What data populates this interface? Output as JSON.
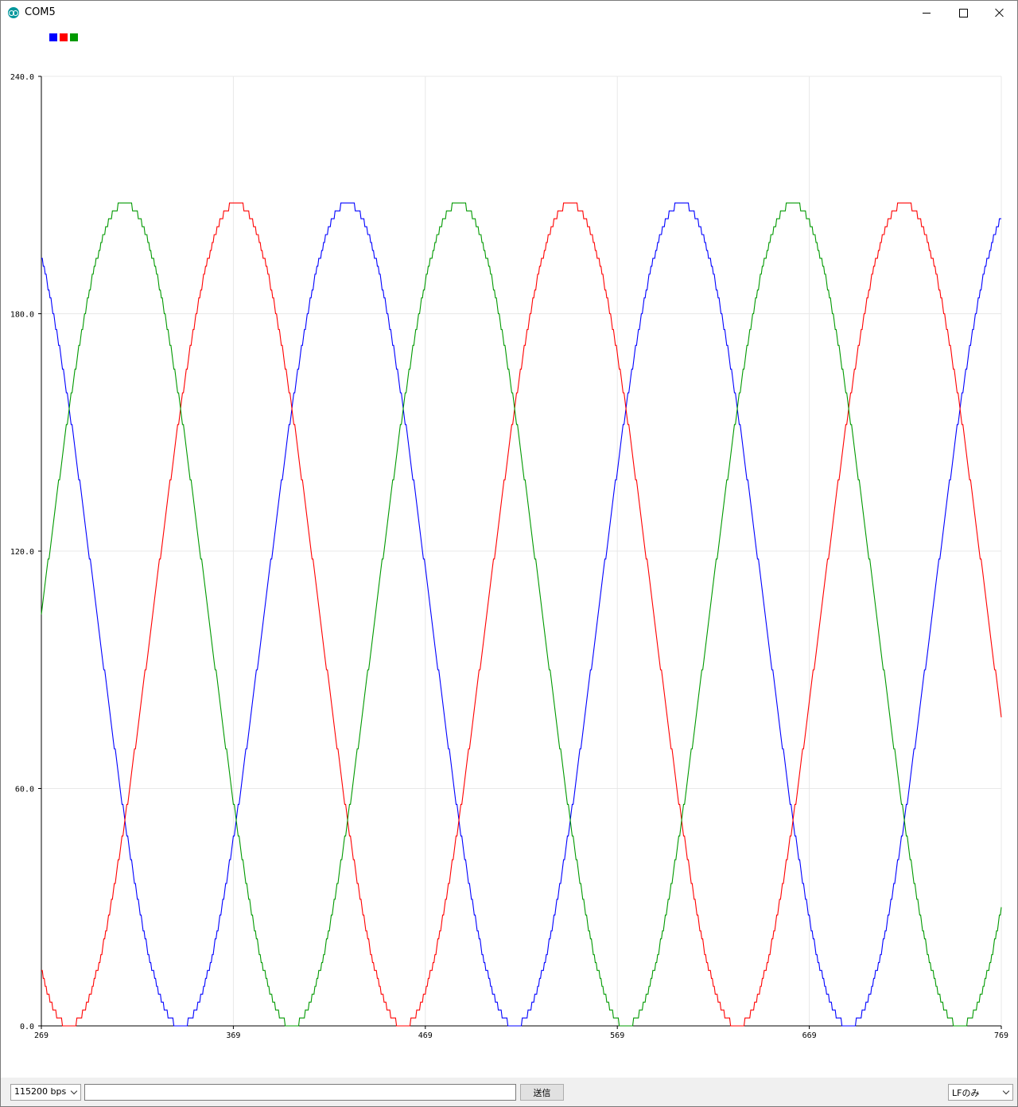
{
  "window": {
    "title": "COM5",
    "app_icon": "arduino-infinity-icon"
  },
  "controls": {
    "minimize_icon": "minimize-icon",
    "maximize_icon": "maximize-icon",
    "close_icon": "close-icon"
  },
  "bottom": {
    "baud_rate": "115200 bps",
    "line_ending": "LFのみ",
    "send_label": "送信",
    "input_value": ""
  },
  "colors": {
    "blue": "#0000ff",
    "red": "#ff0000",
    "green": "#009900",
    "grid": "#e8e8e8"
  },
  "chart_data": {
    "type": "line",
    "title": "",
    "xlabel": "",
    "ylabel": "",
    "x_range": [
      269,
      769
    ],
    "ylim": [
      0,
      240
    ],
    "grid": true,
    "legend": "top-left",
    "y_ticks": [
      "0.0",
      "60.0",
      "120.0",
      "180.0",
      "240.0"
    ],
    "x_ticks": [
      "269",
      "369",
      "469",
      "569",
      "669",
      "769"
    ],
    "series": [
      {
        "color": "#0000ff",
        "amplitude": 104,
        "offset": 104,
        "period": 174,
        "phase_deg": 120
      },
      {
        "color": "#ff0000",
        "amplitude": 104,
        "offset": 104,
        "period": 174,
        "phase_deg": 240
      },
      {
        "color": "#009900",
        "amplitude": 104,
        "offset": 104,
        "period": 174,
        "phase_deg": 0
      }
    ]
  }
}
